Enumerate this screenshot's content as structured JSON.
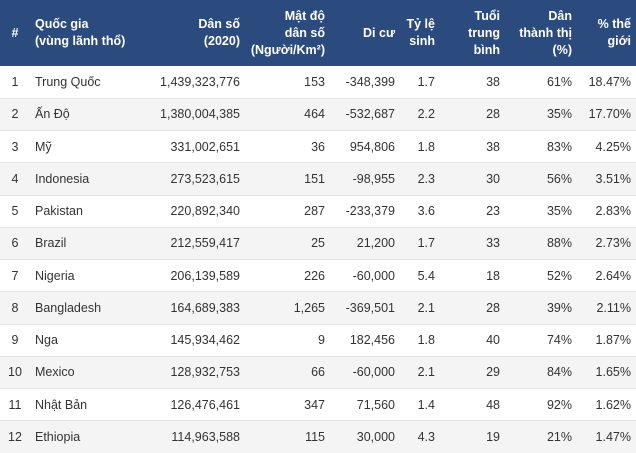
{
  "table": {
    "headers": [
      "#",
      "Quốc gia\n(vùng lãnh thổ)",
      "Dân số\n(2020)",
      "Mật độ\ndân số\n(Người/Km²)",
      "Di cư",
      "Tỷ lệ\nsinh",
      "Tuổi\ntrung\nbình",
      "Dân\nthành thị\n(%)",
      "% thế\ngiới"
    ],
    "rows": [
      [
        "1",
        "Trung Quốc",
        "1,439,323,776",
        "153",
        "-348,399",
        "1.7",
        "38",
        "61%",
        "18.47%"
      ],
      [
        "2",
        "Ấn Độ",
        "1,380,004,385",
        "464",
        "-532,687",
        "2.2",
        "28",
        "35%",
        "17.70%"
      ],
      [
        "3",
        "Mỹ",
        "331,002,651",
        "36",
        "954,806",
        "1.8",
        "38",
        "83%",
        "4.25%"
      ],
      [
        "4",
        "Indonesia",
        "273,523,615",
        "151",
        "-98,955",
        "2.3",
        "30",
        "56%",
        "3.51%"
      ],
      [
        "5",
        "Pakistan",
        "220,892,340",
        "287",
        "-233,379",
        "3.6",
        "23",
        "35%",
        "2.83%"
      ],
      [
        "6",
        "Brazil",
        "212,559,417",
        "25",
        "21,200",
        "1.7",
        "33",
        "88%",
        "2.73%"
      ],
      [
        "7",
        "Nigeria",
        "206,139,589",
        "226",
        "-60,000",
        "5.4",
        "18",
        "52%",
        "2.64%"
      ],
      [
        "8",
        "Bangladesh",
        "164,689,383",
        "1,265",
        "-369,501",
        "2.1",
        "28",
        "39%",
        "2.11%"
      ],
      [
        "9",
        "Nga",
        "145,934,462",
        "9",
        "182,456",
        "1.8",
        "40",
        "74%",
        "1.87%"
      ],
      [
        "10",
        "Mexico",
        "128,932,753",
        "66",
        "-60,000",
        "2.1",
        "29",
        "84%",
        "1.65%"
      ],
      [
        "11",
        "Nhật Bản",
        "126,476,461",
        "347",
        "71,560",
        "1.4",
        "48",
        "92%",
        "1.62%"
      ],
      [
        "12",
        "Ethiopia",
        "114,963,588",
        "115",
        "30,000",
        "4.3",
        "19",
        "21%",
        "1.47%"
      ]
    ]
  }
}
